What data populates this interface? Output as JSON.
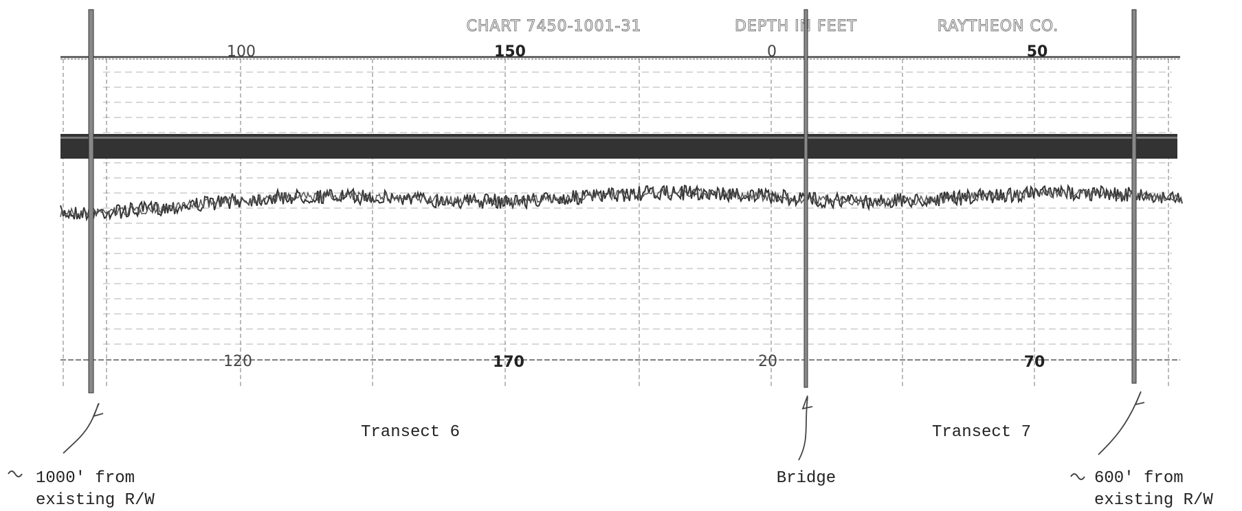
{
  "header": {
    "chart": "CHART 7450-1001-31",
    "units": "DEPTH IN FEET",
    "maker": "RAYTHEON CO."
  },
  "scale_top": [
    "100",
    "150",
    "0",
    "50"
  ],
  "scale_bottom": [
    "120",
    "170",
    "20",
    "70"
  ],
  "transects": [
    "Transect 6",
    "Transect 7"
  ],
  "markers": [
    {
      "lines": [
        "1000' from",
        "existing R/W"
      ]
    },
    {
      "lines": [
        "Bridge"
      ]
    },
    {
      "lines": [
        "600' from",
        "existing R/W"
      ]
    }
  ]
}
